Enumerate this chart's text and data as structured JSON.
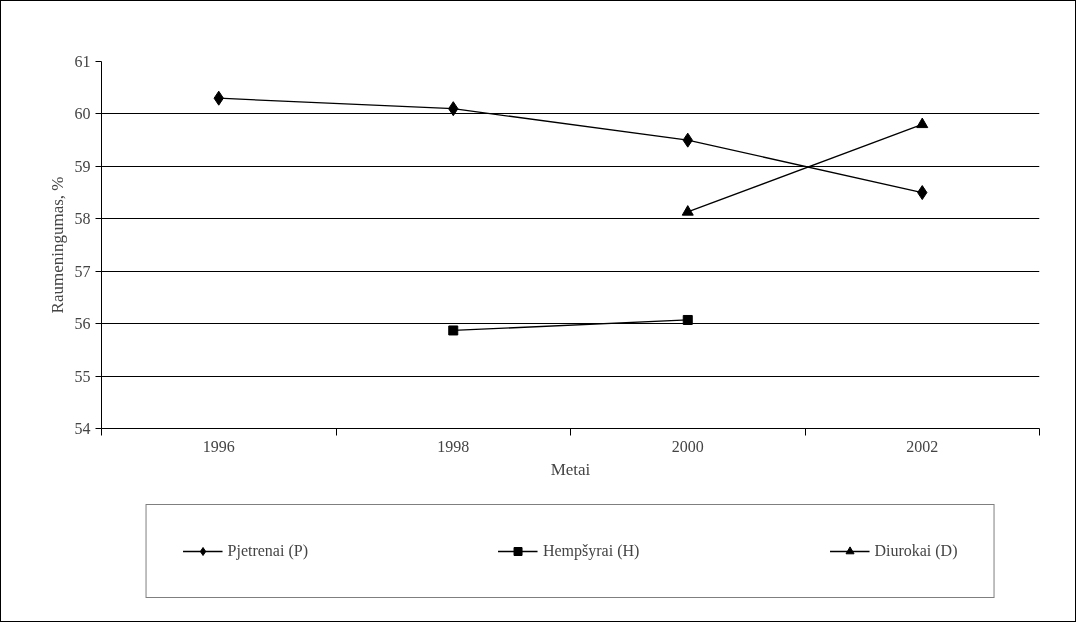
{
  "chart_data": {
    "type": "line",
    "xlabel": "Metai",
    "ylabel": "Raumeningumas, %",
    "categories": [
      "1996",
      "1998",
      "2000",
      "2002"
    ],
    "ylim": [
      54,
      61
    ],
    "yticks": [
      54,
      55,
      56,
      57,
      58,
      59,
      60,
      61
    ],
    "grid": "y",
    "legend": "bottom",
    "line_style": "solid",
    "series": [
      {
        "name": "Pjetrenai (P)",
        "color": "#000000",
        "marker": "diamond",
        "values": [
          60.3,
          60.1,
          59.5,
          58.5
        ]
      },
      {
        "name": "Hempšyrai (H)",
        "color": "#000000",
        "marker": "square",
        "values": [
          null,
          55.87,
          56.07,
          null
        ]
      },
      {
        "name": "Diurokai (D)",
        "color": "#000000",
        "marker": "triangle",
        "values": [
          null,
          null,
          58.13,
          59.8
        ]
      }
    ]
  }
}
